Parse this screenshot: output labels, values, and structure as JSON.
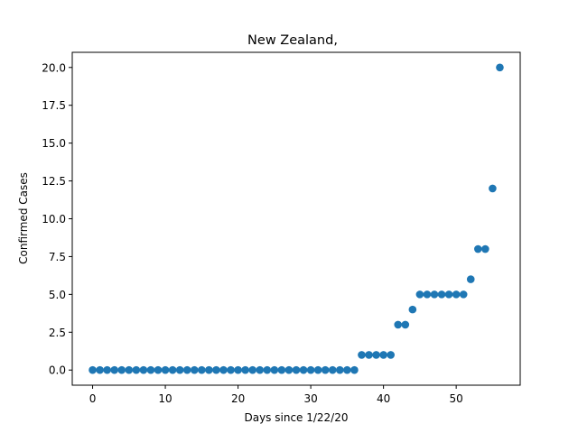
{
  "chart_data": {
    "type": "scatter",
    "title": "New Zealand,",
    "xlabel": "Days since 1/22/20",
    "ylabel": "Confirmed Cases",
    "xlim": [
      -2.8,
      58.8
    ],
    "ylim": [
      -1.0,
      21.0
    ],
    "xticks": [
      0,
      10,
      20,
      30,
      40,
      50
    ],
    "yticks": [
      0.0,
      2.5,
      5.0,
      7.5,
      10.0,
      12.5,
      15.0,
      17.5,
      20.0
    ],
    "xtick_labels": [
      "0",
      "10",
      "20",
      "30",
      "40",
      "50"
    ],
    "ytick_labels": [
      "0.0",
      "2.5",
      "5.0",
      "7.5",
      "10.0",
      "12.5",
      "15.0",
      "17.5",
      "20.0"
    ],
    "grid": false,
    "color": "#1f77b4",
    "x": [
      0,
      1,
      2,
      3,
      4,
      5,
      6,
      7,
      8,
      9,
      10,
      11,
      12,
      13,
      14,
      15,
      16,
      17,
      18,
      19,
      20,
      21,
      22,
      23,
      24,
      25,
      26,
      27,
      28,
      29,
      30,
      31,
      32,
      33,
      34,
      35,
      36,
      37,
      38,
      39,
      40,
      41,
      42,
      43,
      44,
      45,
      46,
      47,
      48,
      49,
      50,
      51,
      52,
      53,
      54,
      55,
      56
    ],
    "y": [
      0,
      0,
      0,
      0,
      0,
      0,
      0,
      0,
      0,
      0,
      0,
      0,
      0,
      0,
      0,
      0,
      0,
      0,
      0,
      0,
      0,
      0,
      0,
      0,
      0,
      0,
      0,
      0,
      0,
      0,
      0,
      0,
      0,
      0,
      0,
      0,
      0,
      1,
      1,
      1,
      1,
      1,
      3,
      3,
      4,
      5,
      5,
      5,
      5,
      5,
      5,
      5,
      6,
      8,
      8,
      12,
      20
    ]
  }
}
